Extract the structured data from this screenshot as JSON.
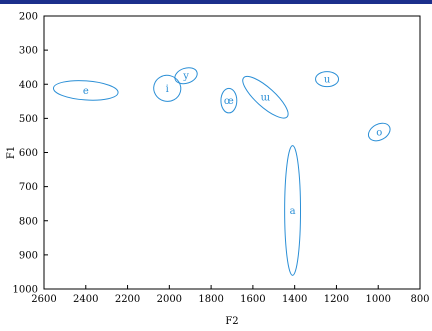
{
  "chart_data": {
    "type": "scatter",
    "title": "",
    "xlabel": "F2",
    "ylabel": "F1",
    "x_reversed": true,
    "y_reversed": true,
    "xlim": [
      2600,
      800
    ],
    "ylim": [
      200,
      1000
    ],
    "x_ticks": [
      "2600",
      "2400",
      "2200",
      "2000",
      "1800",
      "1600",
      "1400",
      "1200",
      "1000",
      "800"
    ],
    "y_ticks": [
      "200",
      "300",
      "400",
      "500",
      "600",
      "700",
      "800",
      "900",
      "1000"
    ],
    "grid": false,
    "series": [
      {
        "name": "e",
        "x": 2400,
        "y": 418,
        "rx_hz": 155,
        "ry_hz": 28,
        "angle_deg": 4
      },
      {
        "name": "i",
        "x": 2010,
        "y": 412,
        "rx_hz": 65,
        "ry_hz": 38,
        "angle_deg": 15
      },
      {
        "name": "y",
        "x": 1920,
        "y": 375,
        "rx_hz": 55,
        "ry_hz": 22,
        "angle_deg": -18
      },
      {
        "name": "œ",
        "x": 1715,
        "y": 448,
        "rx_hz": 38,
        "ry_hz": 36,
        "angle_deg": 0
      },
      {
        "name": "ɯ",
        "x": 1540,
        "y": 438,
        "rx_hz": 140,
        "ry_hz": 28,
        "angle_deg": 42
      },
      {
        "name": "u",
        "x": 1245,
        "y": 385,
        "rx_hz": 55,
        "ry_hz": 22,
        "angle_deg": 0
      },
      {
        "name": "o",
        "x": 995,
        "y": 540,
        "rx_hz": 55,
        "ry_hz": 23,
        "angle_deg": -28
      },
      {
        "name": "a",
        "x": 1410,
        "y": 770,
        "rx_hz": 38,
        "ry_hz": 190,
        "angle_deg": 0
      }
    ],
    "colors": {
      "ellipse": "#2b8fd6",
      "axis": "#000000"
    }
  }
}
